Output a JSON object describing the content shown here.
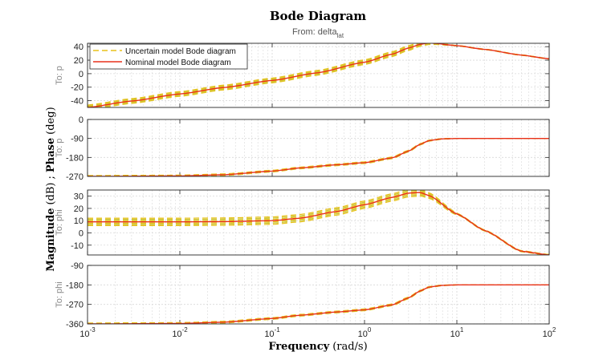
{
  "figure": {
    "title": "Bode Diagram",
    "subtitle_prefix": "From: delta",
    "subtitle_subscript": "lat",
    "xlabel_bold": "Frequency",
    "xlabel_unit": "(rad/s)",
    "ylabel_bold_1": "Magnitude",
    "ylabel_unit_1": "(dB)",
    "ylabel_sep": ";",
    "ylabel_bold_2": "Phase",
    "ylabel_unit_2": "(deg)",
    "x_tick_labels": [
      {
        "base": "10",
        "exp": "-3"
      },
      {
        "base": "10",
        "exp": "-2"
      },
      {
        "base": "10",
        "exp": "-1"
      },
      {
        "base": "10",
        "exp": "0"
      },
      {
        "base": "10",
        "exp": "1"
      },
      {
        "base": "10",
        "exp": "2"
      }
    ]
  },
  "legend": {
    "uncertain_label": "Uncertain model Bode diagram",
    "nominal_label": "Nominal model Bode diagram",
    "placement": "top-left"
  },
  "colors": {
    "uncertain": "#e8c21a",
    "uncertain_band": "#c9c43a",
    "nominal": "#e8301c",
    "grid": "#d9d9d9",
    "frame": "#262626"
  },
  "chart_data": [
    {
      "type": "line",
      "row_label": "To: p",
      "quantity": "magnitude",
      "xscale": "log",
      "xlim": [
        0.001,
        100
      ],
      "ylim": [
        -50,
        45
      ],
      "yticks": [
        -40,
        -20,
        0,
        20,
        40
      ],
      "grid": true,
      "series": [
        {
          "name": "Nominal model Bode diagram",
          "x": [
            0.001,
            0.003,
            0.01,
            0.03,
            0.1,
            0.3,
            1,
            2,
            3,
            4,
            5,
            6,
            8,
            10,
            20,
            50,
            100
          ],
          "y": [
            -50,
            -40.5,
            -30,
            -20.5,
            -10,
            1,
            17,
            29,
            38,
            43.5,
            45.5,
            44.8,
            42.7,
            41.5,
            36,
            27.5,
            22
          ]
        },
        {
          "name": "Uncertain model Bode diagram",
          "offset_range": [
            -3.5,
            3.5
          ]
        }
      ]
    },
    {
      "type": "line",
      "row_label": "To: p",
      "quantity": "phase",
      "xscale": "log",
      "xlim": [
        0.001,
        100
      ],
      "ylim": [
        -270,
        0
      ],
      "yticks": [
        -270,
        -180,
        -90,
        0
      ],
      "grid": true,
      "series": [
        {
          "name": "Nominal model Bode diagram",
          "x": [
            0.001,
            0.01,
            0.03,
            0.1,
            0.2,
            0.5,
            1,
            2,
            3,
            4,
            5,
            7,
            10,
            20,
            50,
            100
          ],
          "y": [
            -270,
            -268,
            -262,
            -245,
            -230,
            -215,
            -205,
            -182,
            -150,
            -118,
            -100,
            -92,
            -90,
            -90,
            -90,
            -90
          ]
        },
        {
          "name": "Uncertain model Bode diagram",
          "offset_range": [
            -4,
            4
          ]
        }
      ]
    },
    {
      "type": "line",
      "row_label": "To: phi",
      "quantity": "magnitude",
      "xscale": "log",
      "xlim": [
        0.001,
        100
      ],
      "ylim": [
        -18,
        35
      ],
      "yticks": [
        -10,
        0,
        10,
        20,
        30
      ],
      "grid": true,
      "series": [
        {
          "name": "Nominal model Bode diagram",
          "x": [
            0.001,
            0.01,
            0.03,
            0.1,
            0.2,
            0.5,
            1,
            2,
            3,
            4,
            5,
            10,
            20,
            50,
            100
          ],
          "y": [
            9,
            9,
            9.2,
            10,
            12,
            17.5,
            23,
            29,
            32.5,
            33,
            30.5,
            15.5,
            2,
            -15,
            -18
          ]
        },
        {
          "name": "Uncertain model Bode diagram",
          "offset_range": [
            -3,
            3
          ]
        }
      ]
    },
    {
      "type": "line",
      "row_label": "To: phi",
      "quantity": "phase",
      "xscale": "log",
      "xlim": [
        0.001,
        100
      ],
      "ylim": [
        -360,
        -90
      ],
      "yticks": [
        -360,
        -270,
        -180,
        -90
      ],
      "grid": true,
      "series": [
        {
          "name": "Nominal model Bode diagram",
          "x": [
            0.001,
            0.01,
            0.03,
            0.1,
            0.2,
            0.5,
            1,
            2,
            3,
            4,
            5,
            7,
            10,
            20,
            50,
            100
          ],
          "y": [
            -360,
            -358,
            -352,
            -335,
            -320,
            -305,
            -295,
            -272,
            -240,
            -208,
            -190,
            -182,
            -180,
            -180,
            -180,
            -180
          ]
        },
        {
          "name": "Uncertain model Bode diagram",
          "offset_range": [
            -4,
            4
          ]
        }
      ]
    }
  ]
}
